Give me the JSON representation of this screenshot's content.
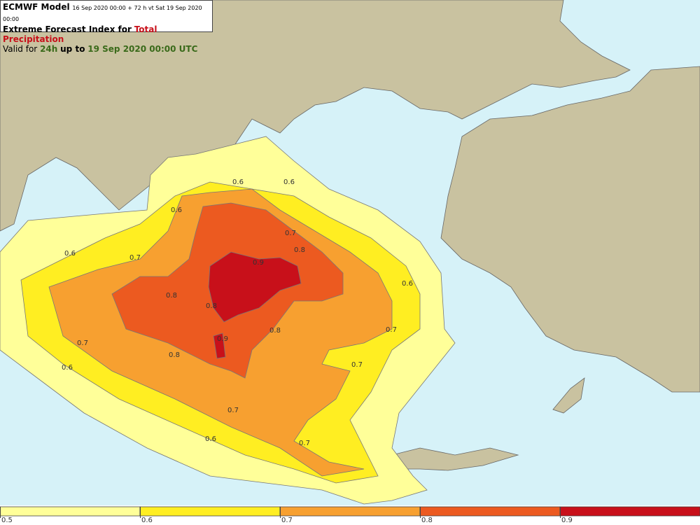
{
  "header": {
    "model": "ECMWF Model",
    "run": "16 Sep 2020 00:00 + 72 h vt Sat 19 Sep 2020 00:00",
    "title_prefix": "Extreme Forecast Index for",
    "parameter": "Total Precipitation",
    "valid_prefix": "Valid for",
    "period": "24h",
    "valid_mid": "up to",
    "valid_time": "19 Sep 2020 00:00 UTC"
  },
  "contour_labels": [
    "0.6",
    "0.6",
    "0.6",
    "0.6",
    "0.7",
    "0.7",
    "0.8",
    "0.9",
    "0.8",
    "0.8",
    "0.6",
    "0.8",
    "0.7",
    "0.9",
    "0.7",
    "0.8",
    "0.7",
    "0.6",
    "0.7",
    "0.6",
    "0.7"
  ],
  "colorbar": {
    "ticks": [
      0.5,
      0.6,
      0.7,
      0.8,
      0.9
    ],
    "colors": [
      "#ffff99",
      "#ffee22",
      "#f7a030",
      "#ec5a20",
      "#c8101a"
    ]
  }
}
